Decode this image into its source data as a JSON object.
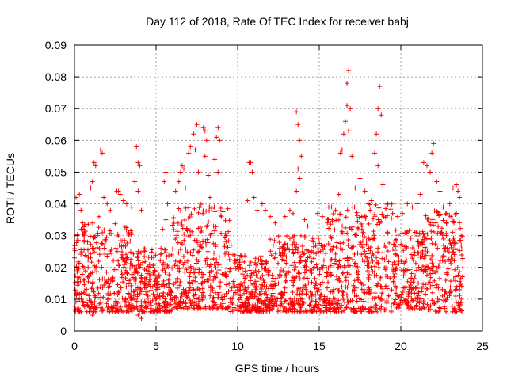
{
  "chart_data": {
    "type": "scatter",
    "title": "Day 112 of 2018, Rate Of TEC Index for receiver babj",
    "xlabel": "GPS time / hours",
    "ylabel": "ROTI / TECUs",
    "xlim": [
      0,
      25
    ],
    "ylim": [
      0,
      0.09
    ],
    "xticks": [
      0,
      5,
      10,
      15,
      20,
      25
    ],
    "xtick_labels": [
      "0",
      "5",
      "10",
      "15",
      "20",
      "25"
    ],
    "yticks": [
      0,
      0.01,
      0.02,
      0.03,
      0.04,
      0.05,
      0.06,
      0.07,
      0.08,
      0.09
    ],
    "ytick_labels": [
      "0",
      "0.01",
      "0.02",
      "0.03",
      "0.04",
      "0.05",
      "0.06",
      "0.07",
      "0.08",
      "0.09"
    ],
    "grid": true,
    "marker": "+",
    "colors": {
      "series": "#ff0000",
      "axis": "#000000",
      "grid": "#a0a0a0"
    },
    "series": [
      {
        "name": "ROTI",
        "points": [
          [
            0.1,
            0.042
          ],
          [
            0.2,
            0.04
          ],
          [
            0.3,
            0.043
          ],
          [
            0.4,
            0.038
          ],
          [
            0.5,
            0.034
          ],
          [
            0.6,
            0.031
          ],
          [
            0.2,
            0.012
          ],
          [
            0.3,
            0.01
          ],
          [
            0.5,
            0.009
          ],
          [
            0.8,
            0.028
          ],
          [
            1.0,
            0.045
          ],
          [
            1.1,
            0.047
          ],
          [
            1.2,
            0.053
          ],
          [
            1.3,
            0.052
          ],
          [
            1.6,
            0.057
          ],
          [
            1.7,
            0.056
          ],
          [
            1.5,
            0.036
          ],
          [
            1.4,
            0.03
          ],
          [
            0.9,
            0.006
          ],
          [
            1.1,
            0.005
          ],
          [
            1.3,
            0.007
          ],
          [
            1.8,
            0.042
          ],
          [
            2.0,
            0.04
          ],
          [
            2.2,
            0.038
          ],
          [
            2.6,
            0.044
          ],
          [
            2.7,
            0.044
          ],
          [
            2.8,
            0.043
          ],
          [
            3.0,
            0.041
          ],
          [
            3.2,
            0.04
          ],
          [
            3.5,
            0.039
          ],
          [
            3.8,
            0.058
          ],
          [
            3.9,
            0.053
          ],
          [
            4.0,
            0.052
          ],
          [
            3.7,
            0.047
          ],
          [
            3.9,
            0.044
          ],
          [
            4.1,
            0.038
          ],
          [
            3.9,
            0.005
          ],
          [
            4.1,
            0.004
          ],
          [
            4.3,
            0.006
          ],
          [
            4.5,
            0.011
          ],
          [
            4.8,
            0.014
          ],
          [
            5.0,
            0.016
          ],
          [
            5.4,
            0.032
          ],
          [
            5.6,
            0.035
          ],
          [
            5.7,
            0.04
          ],
          [
            5.5,
            0.047
          ],
          [
            5.6,
            0.05
          ],
          [
            5.3,
            0.026
          ],
          [
            6.2,
            0.044
          ],
          [
            6.4,
            0.047
          ],
          [
            6.5,
            0.05
          ],
          [
            6.6,
            0.052
          ],
          [
            6.7,
            0.051
          ],
          [
            6.8,
            0.045
          ],
          [
            7.0,
            0.056
          ],
          [
            7.1,
            0.058
          ],
          [
            7.3,
            0.062
          ],
          [
            7.5,
            0.065
          ],
          [
            7.4,
            0.057
          ],
          [
            7.6,
            0.05
          ],
          [
            7.9,
            0.064
          ],
          [
            8.0,
            0.063
          ],
          [
            8.1,
            0.06
          ],
          [
            8.0,
            0.055
          ],
          [
            8.2,
            0.049
          ],
          [
            8.3,
            0.042
          ],
          [
            8.7,
            0.061
          ],
          [
            8.8,
            0.064
          ],
          [
            8.9,
            0.06
          ],
          [
            8.6,
            0.054
          ],
          [
            8.8,
            0.05
          ],
          [
            9.0,
            0.036
          ],
          [
            9.3,
            0.03
          ],
          [
            9.6,
            0.027
          ],
          [
            9.9,
            0.022
          ],
          [
            10.2,
            0.015
          ],
          [
            10.0,
            0.008
          ],
          [
            10.3,
            0.006
          ],
          [
            10.6,
            0.041
          ],
          [
            10.7,
            0.053
          ],
          [
            10.8,
            0.053
          ],
          [
            10.9,
            0.05
          ],
          [
            11.0,
            0.042
          ],
          [
            11.2,
            0.038
          ],
          [
            11.5,
            0.04
          ],
          [
            11.7,
            0.038
          ],
          [
            12.0,
            0.036
          ],
          [
            12.3,
            0.034
          ],
          [
            12.6,
            0.033
          ],
          [
            12.9,
            0.036
          ],
          [
            13.2,
            0.038
          ],
          [
            13.4,
            0.037
          ],
          [
            13.6,
            0.069
          ],
          [
            13.7,
            0.065
          ],
          [
            13.8,
            0.06
          ],
          [
            13.9,
            0.055
          ],
          [
            13.7,
            0.051
          ],
          [
            13.8,
            0.048
          ],
          [
            13.6,
            0.044
          ],
          [
            14.1,
            0.035
          ],
          [
            14.3,
            0.033
          ],
          [
            14.6,
            0.029
          ],
          [
            14.9,
            0.037
          ],
          [
            15.2,
            0.036
          ],
          [
            15.5,
            0.034
          ],
          [
            15.8,
            0.035
          ],
          [
            16.0,
            0.038
          ],
          [
            16.2,
            0.043
          ],
          [
            16.3,
            0.056
          ],
          [
            16.4,
            0.057
          ],
          [
            16.5,
            0.062
          ],
          [
            16.6,
            0.066
          ],
          [
            16.7,
            0.071
          ],
          [
            16.8,
            0.082
          ],
          [
            16.7,
            0.078
          ],
          [
            16.9,
            0.07
          ],
          [
            16.8,
            0.063
          ],
          [
            17.0,
            0.055
          ],
          [
            17.2,
            0.045
          ],
          [
            17.5,
            0.048
          ],
          [
            17.8,
            0.044
          ],
          [
            18.0,
            0.04
          ],
          [
            18.2,
            0.041
          ],
          [
            18.4,
            0.056
          ],
          [
            18.5,
            0.062
          ],
          [
            18.6,
            0.07
          ],
          [
            18.7,
            0.077
          ],
          [
            18.8,
            0.068
          ],
          [
            18.6,
            0.052
          ],
          [
            18.9,
            0.046
          ],
          [
            19.2,
            0.04
          ],
          [
            19.5,
            0.037
          ],
          [
            19.8,
            0.036
          ],
          [
            20.1,
            0.037
          ],
          [
            20.4,
            0.04
          ],
          [
            20.7,
            0.039
          ],
          [
            21.0,
            0.04
          ],
          [
            21.2,
            0.043
          ],
          [
            21.4,
            0.053
          ],
          [
            21.6,
            0.052
          ],
          [
            21.8,
            0.05
          ],
          [
            21.9,
            0.056
          ],
          [
            22.0,
            0.059
          ],
          [
            22.2,
            0.047
          ],
          [
            22.4,
            0.044
          ],
          [
            22.6,
            0.039
          ],
          [
            22.8,
            0.037
          ],
          [
            23.0,
            0.04
          ],
          [
            23.2,
            0.045
          ],
          [
            23.4,
            0.046
          ],
          [
            23.5,
            0.044
          ],
          [
            23.6,
            0.042
          ],
          [
            23.7,
            0.03
          ],
          [
            23.6,
            0.013
          ],
          [
            23.7,
            0.01
          ],
          [
            23.5,
            0.008
          ]
        ],
        "bands": [
          {
            "x": [
              0.0,
              3.5
            ],
            "y": [
              0.006,
              0.034
            ]
          },
          {
            "x": [
              3.5,
              6.0
            ],
            "y": [
              0.006,
              0.026
            ]
          },
          {
            "x": [
              6.0,
              9.5
            ],
            "y": [
              0.007,
              0.04
            ]
          },
          {
            "x": [
              9.5,
              12.0
            ],
            "y": [
              0.006,
              0.024
            ]
          },
          {
            "x": [
              12.0,
              15.5
            ],
            "y": [
              0.006,
              0.03
            ]
          },
          {
            "x": [
              15.5,
              19.5
            ],
            "y": [
              0.006,
              0.04
            ]
          },
          {
            "x": [
              19.5,
              21.5
            ],
            "y": [
              0.007,
              0.032
            ]
          },
          {
            "x": [
              21.5,
              23.8
            ],
            "y": [
              0.006,
              0.038
            ]
          }
        ]
      }
    ]
  }
}
